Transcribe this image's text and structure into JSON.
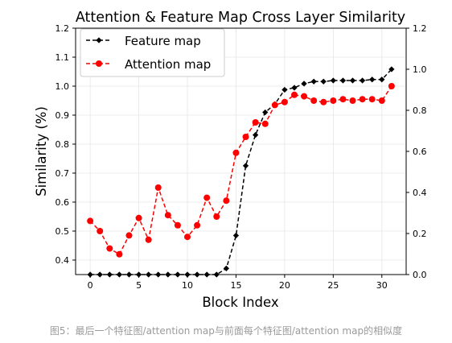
{
  "chart_data": {
    "type": "line",
    "title": "Attention & Feature Map Cross Layer Similarity",
    "xlabel": "Block Index",
    "ylabel": "Similarity (%)",
    "xlim": [
      -1.5,
      32.5
    ],
    "ylim": [
      0.35,
      1.2
    ],
    "y2lim": [
      0.0,
      1.2
    ],
    "xticks": [
      0,
      5,
      10,
      15,
      20,
      25,
      30
    ],
    "yticks": [
      0.4,
      0.5,
      0.6,
      0.7,
      0.8,
      0.9,
      1.0,
      1.1,
      1.2
    ],
    "yticklabels": [
      "0.4",
      "0.5",
      "0.6",
      "0.7",
      "0.8",
      "0.9",
      "1.0",
      "1.1",
      "1.2"
    ],
    "y2ticks": [
      0.0,
      0.2,
      0.4,
      0.6,
      0.8,
      1.0,
      1.2
    ],
    "y2ticklabels": [
      "0.0",
      "0.2",
      "0.4",
      "0.6",
      "0.8",
      "1.0",
      "1.2"
    ],
    "grid": true,
    "legend_position": "top-left",
    "series": [
      {
        "name": "Feature map",
        "axis": "right",
        "color": "#000000",
        "marker": "diamond",
        "linestyle": "dashed",
        "x": [
          0,
          1,
          2,
          3,
          4,
          5,
          6,
          7,
          8,
          9,
          10,
          11,
          12,
          13,
          14,
          15,
          16,
          17,
          18,
          19,
          20,
          21,
          22,
          23,
          24,
          25,
          26,
          27,
          28,
          29,
          30,
          31
        ],
        "values": [
          0,
          0,
          0,
          0,
          0,
          0,
          0,
          0,
          0,
          0,
          0,
          0,
          0,
          0,
          0.03,
          0.19,
          0.53,
          0.68,
          0.79,
          0.83,
          0.9,
          0.91,
          0.93,
          0.94,
          0.94,
          0.945,
          0.945,
          0.945,
          0.945,
          0.95,
          0.95,
          1.0
        ]
      },
      {
        "name": "Attention map",
        "axis": "left",
        "color": "#ff0000",
        "marker": "circle",
        "linestyle": "dashed",
        "x": [
          0,
          1,
          2,
          3,
          4,
          5,
          6,
          7,
          8,
          9,
          10,
          11,
          12,
          13,
          14,
          15,
          16,
          17,
          18,
          19,
          20,
          21,
          22,
          23,
          24,
          25,
          26,
          27,
          28,
          29,
          30,
          31
        ],
        "values": [
          0.535,
          0.5,
          0.44,
          0.42,
          0.485,
          0.545,
          0.47,
          0.65,
          0.555,
          0.52,
          0.48,
          0.52,
          0.615,
          0.55,
          0.605,
          0.77,
          0.825,
          0.875,
          0.87,
          0.935,
          0.945,
          0.97,
          0.965,
          0.95,
          0.945,
          0.95,
          0.955,
          0.95,
          0.955,
          0.955,
          0.95,
          1.0
        ]
      }
    ]
  },
  "caption": "图5：最后一个特征图/attention map与前面每个特征图/attention map的相似度"
}
